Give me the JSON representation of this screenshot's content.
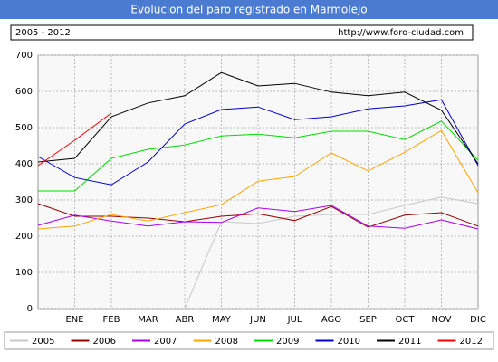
{
  "chart_data": {
    "type": "line",
    "title": "Evolucion del paro registrado en Marmolejo",
    "subtitle": "2005 - 2012",
    "source": "http://www.foro-ciudad.com",
    "categories": [
      null,
      "ENE",
      "FEB",
      "MAR",
      "ABR",
      "MAY",
      "JUN",
      "JUL",
      "AGO",
      "SEP",
      "OCT",
      "NOV",
      "DIC"
    ],
    "ylim": [
      0,
      700
    ],
    "yticks": [
      0,
      100,
      200,
      300,
      400,
      500,
      600,
      700
    ],
    "grid": true,
    "series": [
      {
        "name": "2005",
        "color": "#c8c8c8",
        "values": [
          null,
          null,
          null,
          null,
          0,
          240,
          235,
          255,
          260,
          260,
          285,
          308,
          290
        ]
      },
      {
        "name": "2006",
        "color": "#990000",
        "values": [
          290,
          255,
          255,
          250,
          240,
          255,
          262,
          243,
          282,
          225,
          258,
          265,
          228
        ]
      },
      {
        "name": "2007",
        "color": "#aa00ee",
        "values": [
          230,
          258,
          242,
          228,
          240,
          238,
          278,
          268,
          285,
          228,
          222,
          245,
          220
        ]
      },
      {
        "name": "2008",
        "color": "#ffa500",
        "values": [
          220,
          228,
          260,
          242,
          265,
          287,
          352,
          365,
          430,
          380,
          432,
          492,
          320
        ]
      },
      {
        "name": "2009",
        "color": "#00dd00",
        "values": [
          325,
          325,
          415,
          440,
          452,
          477,
          482,
          472,
          490,
          490,
          467,
          518,
          410
        ]
      },
      {
        "name": "2010",
        "color": "#0000cc",
        "values": [
          420,
          362,
          342,
          405,
          510,
          550,
          557,
          522,
          530,
          552,
          560,
          577,
          395
        ]
      },
      {
        "name": "2011",
        "color": "#000000",
        "values": [
          405,
          415,
          530,
          568,
          588,
          652,
          615,
          622,
          598,
          588,
          598,
          548,
          400
        ]
      },
      {
        "name": "2012",
        "color": "#ff0000",
        "values": [
          395,
          465,
          540,
          null,
          null,
          null,
          null,
          null,
          null,
          null,
          null,
          null,
          null
        ]
      }
    ]
  }
}
